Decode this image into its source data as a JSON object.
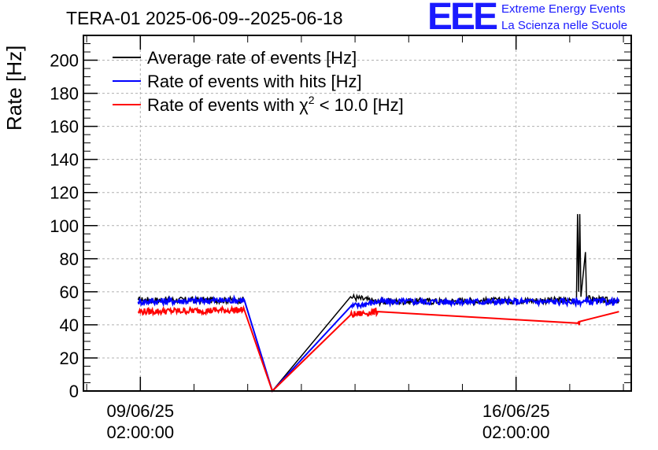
{
  "header": {
    "title": "TERA-01 2025-06-09--2025-06-18",
    "logo_text": "EEE",
    "logo_line1": "Extreme Energy Events",
    "logo_line2": "La Scienza nelle Scuole"
  },
  "colors": {
    "average": "#000000",
    "hits": "#0000ff",
    "chi2": "#ff0000",
    "logo": "#1a1aff",
    "grid": "#b0b0b0"
  },
  "chart_data": {
    "type": "line",
    "title": "TERA-01 2025-06-09--2025-06-18",
    "ylabel": "Rate [Hz]",
    "xlabel": "",
    "ylim": [
      0,
      215
    ],
    "yticks": [
      0,
      20,
      40,
      60,
      80,
      100,
      120,
      140,
      160,
      180,
      200
    ],
    "xlim": [
      "2025-06-08 00:33",
      "2025-06-18 05:30"
    ],
    "xticks": [
      {
        "at": "2025-06-09 02:00:00",
        "label_line1": "09/06/25",
        "label_line2": "02:00:00"
      },
      {
        "at": "2025-06-16 02:00:00",
        "label_line1": "16/06/25",
        "label_line2": "02:00:00"
      }
    ],
    "grid": true,
    "legend_position": "top-left",
    "legend": [
      {
        "name": "Average rate of events [Hz]",
        "color": "#000000"
      },
      {
        "name": "Rate of events with hits [Hz]",
        "color": "#0000ff"
      },
      {
        "name": "Rate of events with",
        "name_symbol": "χ",
        "name_sup": "2",
        "name_rest": " < 10.0 [Hz]",
        "color": "#ff0000"
      }
    ],
    "series": [
      {
        "name": "Average rate of events [Hz]",
        "color": "#000000",
        "points": [
          {
            "x": "2025-06-09 01:00",
            "y": 55
          },
          {
            "x": "2025-06-11 00:30",
            "y": 55
          },
          {
            "x": "2025-06-11 13:00",
            "y": 0
          },
          {
            "x": "2025-06-13 00:00",
            "y": 57
          },
          {
            "x": "2025-06-13 12:00",
            "y": 54
          },
          {
            "x": "2025-06-17 05:00",
            "y": 55
          },
          {
            "x": "2025-06-17 05:30",
            "y": 107
          },
          {
            "x": "2025-06-17 06:00",
            "y": 60
          },
          {
            "x": "2025-06-17 06:30",
            "y": 107
          },
          {
            "x": "2025-06-17 07:00",
            "y": 57
          },
          {
            "x": "2025-06-17 09:00",
            "y": 84
          },
          {
            "x": "2025-06-17 09:30",
            "y": 56
          },
          {
            "x": "2025-06-18 00:00",
            "y": 54
          }
        ]
      },
      {
        "name": "Rate of events with hits [Hz]",
        "color": "#0000ff",
        "points": [
          {
            "x": "2025-06-09 01:00",
            "y": 54
          },
          {
            "x": "2025-06-11 00:30",
            "y": 55
          },
          {
            "x": "2025-06-11 13:00",
            "y": 0
          },
          {
            "x": "2025-06-13 00:00",
            "y": 51
          },
          {
            "x": "2025-06-13 12:00",
            "y": 54
          },
          {
            "x": "2025-06-18 00:00",
            "y": 54
          }
        ]
      },
      {
        "name": "Rate of events with χ2 < 10.0 [Hz]",
        "color": "#ff0000",
        "points": [
          {
            "x": "2025-06-09 01:00",
            "y": 48
          },
          {
            "x": "2025-06-11 00:30",
            "y": 49
          },
          {
            "x": "2025-06-11 13:00",
            "y": 0
          },
          {
            "x": "2025-06-13 00:00",
            "y": 46
          },
          {
            "x": "2025-06-13 12:00",
            "y": 48
          },
          {
            "x": "2025-06-17 05:30",
            "y": 41
          },
          {
            "x": "2025-06-17 06:30",
            "y": 42
          },
          {
            "x": "2025-06-18 00:00",
            "y": 48
          }
        ]
      }
    ]
  }
}
